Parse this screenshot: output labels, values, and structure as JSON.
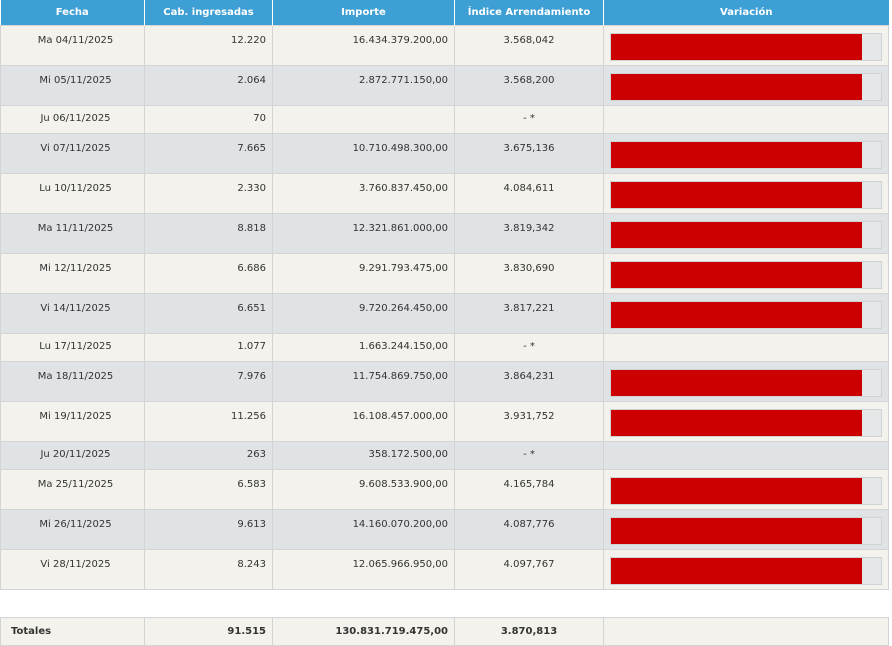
{
  "headers": {
    "fecha": "Fecha",
    "cabezas": "Cab. ingresadas",
    "importe": "Importe",
    "indice": "Índice Arrendamiento",
    "variacion": "Variación"
  },
  "rows": [
    {
      "fecha": "Ma 04/11/2025",
      "cabezas": "12.220",
      "importe": "16.434.379.200,00",
      "indice": "3.568,042",
      "variacion_fill": 0.93
    },
    {
      "fecha": "Mi 05/11/2025",
      "cabezas": "2.064",
      "importe": "2.872.771.150,00",
      "indice": "3.568,200",
      "variacion_fill": 0.93
    },
    {
      "fecha": "Ju 06/11/2025",
      "cabezas": "70",
      "importe": "",
      "indice": "- *",
      "variacion_fill": null
    },
    {
      "fecha": "Vi 07/11/2025",
      "cabezas": "7.665",
      "importe": "10.710.498.300,00",
      "indice": "3.675,136",
      "variacion_fill": 0.93
    },
    {
      "fecha": "Lu 10/11/2025",
      "cabezas": "2.330",
      "importe": "3.760.837.450,00",
      "indice": "4.084,611",
      "variacion_fill": 0.93
    },
    {
      "fecha": "Ma 11/11/2025",
      "cabezas": "8.818",
      "importe": "12.321.861.000,00",
      "indice": "3.819,342",
      "variacion_fill": 0.93
    },
    {
      "fecha": "Mi 12/11/2025",
      "cabezas": "6.686",
      "importe": "9.291.793.475,00",
      "indice": "3.830,690",
      "variacion_fill": 0.93
    },
    {
      "fecha": "Vi 14/11/2025",
      "cabezas": "6.651",
      "importe": "9.720.264.450,00",
      "indice": "3.817,221",
      "variacion_fill": 0.93
    },
    {
      "fecha": "Lu 17/11/2025",
      "cabezas": "1.077",
      "importe": "1.663.244.150,00",
      "indice": "- *",
      "variacion_fill": null
    },
    {
      "fecha": "Ma 18/11/2025",
      "cabezas": "7.976",
      "importe": "11.754.869.750,00",
      "indice": "3.864,231",
      "variacion_fill": 0.93
    },
    {
      "fecha": "Mi 19/11/2025",
      "cabezas": "11.256",
      "importe": "16.108.457.000,00",
      "indice": "3.931,752",
      "variacion_fill": 0.93
    },
    {
      "fecha": "Ju 20/11/2025",
      "cabezas": "263",
      "importe": "358.172.500,00",
      "indice": "- *",
      "variacion_fill": null
    },
    {
      "fecha": "Ma 25/11/2025",
      "cabezas": "6.583",
      "importe": "9.608.533.900,00",
      "indice": "4.165,784",
      "variacion_fill": 0.93
    },
    {
      "fecha": "Mi 26/11/2025",
      "cabezas": "9.613",
      "importe": "14.160.070.200,00",
      "indice": "4.087,776",
      "variacion_fill": 0.93
    },
    {
      "fecha": "Vi 28/11/2025",
      "cabezas": "8.243",
      "importe": "12.065.966.950,00",
      "indice": "4.097,767",
      "variacion_fill": 0.93
    }
  ],
  "totals": {
    "label": "Totales",
    "cabezas": "91.515",
    "importe": "130.831.719.475,00",
    "indice": "3.870,813"
  },
  "colors": {
    "header_bg": "#3d9fd4",
    "bar_fill": "#cc0000",
    "bar_track": "#e6e7e9",
    "row_odd": "#f3f2ec",
    "row_even": "#dfe3e6"
  }
}
